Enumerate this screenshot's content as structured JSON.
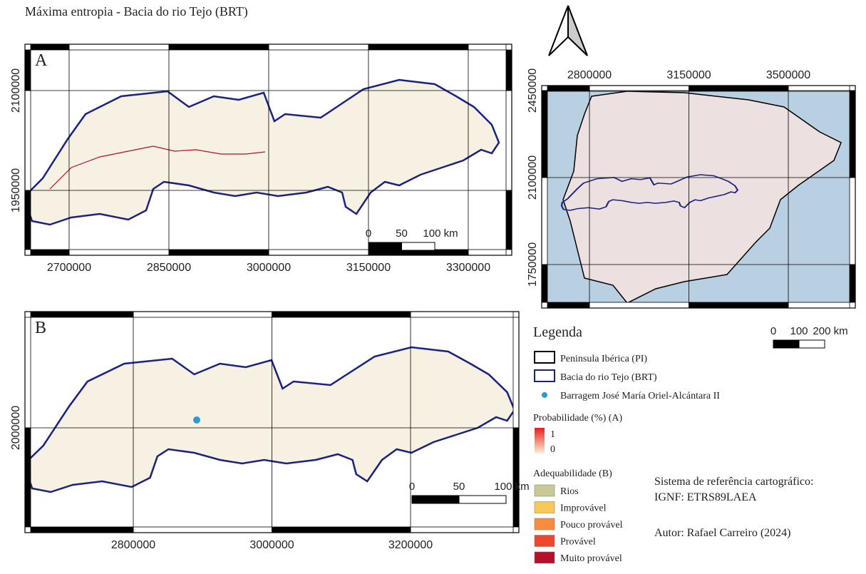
{
  "title": "Máxima entropia - Bacia do rio Tejo (BRT)",
  "maps": {
    "a": {
      "label": "A",
      "xlim": [
        2633600,
        3365400
      ],
      "ylim": [
        1852500,
        2169600
      ],
      "xticks": [
        2700000,
        2850000,
        3000000,
        3150000,
        3300000
      ],
      "yticks": [
        1950000,
        2100000
      ],
      "scale": [
        "0",
        "50",
        "100 km"
      ]
    },
    "inset": {
      "xlim": [
        2631900,
        3735800
      ],
      "ylim": [
        1575000,
        2470000
      ],
      "xticks": [
        2800000,
        3150000,
        3500000
      ],
      "yticks": [
        1750000,
        2100000,
        2450000
      ],
      "scale": [
        "0",
        "100",
        "200 km"
      ]
    },
    "b": {
      "label": "B",
      "xlim": [
        2643700,
        3356300
      ],
      "ylim": [
        1848800,
        2167600
      ],
      "xticks": [
        2800000,
        3000000,
        3200000
      ],
      "yticks": [
        2000000
      ],
      "scale": [
        "0",
        "50",
        "100 km"
      ]
    }
  },
  "legend": {
    "title": "Legenda",
    "layers": [
      {
        "label": "Peninsula Ibérica (PI)",
        "color": "#000000"
      },
      {
        "label": "Bacia do rio Tejo (BRT)",
        "color": "#1a237e"
      },
      {
        "label": "Barragem José María Oriel-Alcántara II",
        "color": "#2b9bd6"
      }
    ],
    "probability": {
      "title": "Probabilidade (%) (A)",
      "max": 1,
      "min": 0
    },
    "suitability": {
      "title": "Adequabilidade (B)",
      "classes": [
        {
          "label": "Rios",
          "color": "#c9c996"
        },
        {
          "label": "Improvável",
          "color": "#f7c85a"
        },
        {
          "label": "Pouco provável",
          "color": "#f98c3f"
        },
        {
          "label": "Provável",
          "color": "#f0462b"
        },
        {
          "label": "Muito provável",
          "color": "#b5102b"
        }
      ]
    }
  },
  "crs": {
    "title": "Sistema de referência cartográfico:",
    "value": "IGNF: ETRS89LAEA"
  },
  "author": "Autor: Rafael Carreiro (2024)"
}
